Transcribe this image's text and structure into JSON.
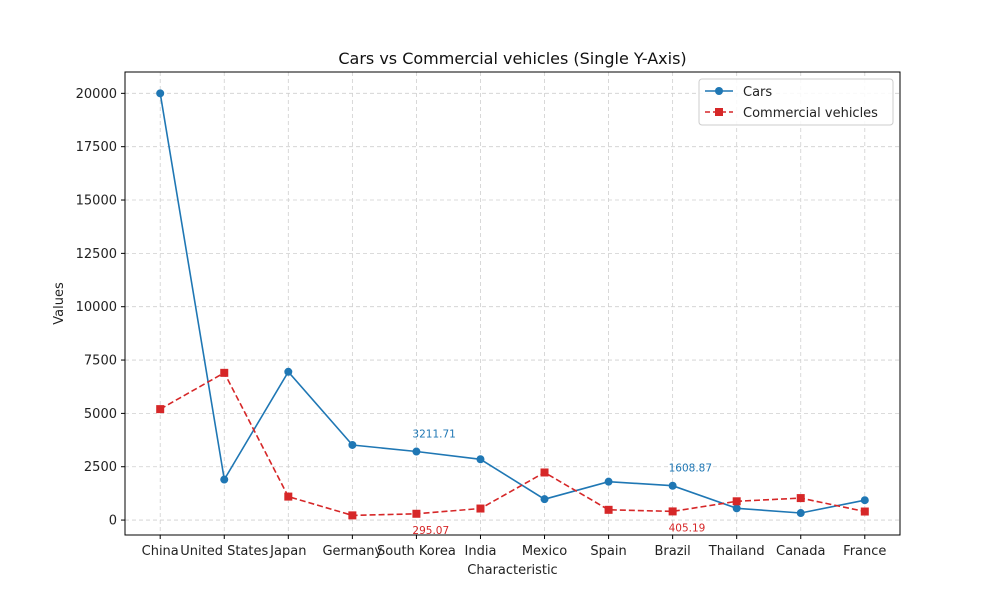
{
  "chart_data": {
    "type": "line",
    "title": "Cars vs Commercial vehicles (Single Y-Axis)",
    "xlabel": "Characteristic",
    "ylabel": "Values",
    "categories": [
      "China",
      "United States",
      "Japan",
      "Germany",
      "South Korea",
      "India",
      "Mexico",
      "Spain",
      "Brazil",
      "Thailand",
      "Canada",
      "France"
    ],
    "ylim": [
      -700,
      21000
    ],
    "yticks": [
      0,
      2500,
      5000,
      7500,
      10000,
      12500,
      15000,
      17500,
      20000
    ],
    "grid": true,
    "legend_position": "top-right",
    "series": [
      {
        "name": "Cars",
        "color": "#1f77b4",
        "line_style": "solid",
        "marker": "circle",
        "values": [
          20000,
          1900,
          6950,
          3520,
          3211.71,
          2850,
          980,
          1800,
          1608.87,
          550,
          330,
          930
        ]
      },
      {
        "name": "Commercial vehicles",
        "color": "#d62728",
        "line_style": "dashed",
        "marker": "square",
        "values": [
          5200,
          6900,
          1100,
          220,
          295.07,
          540,
          2230,
          480,
          405.19,
          880,
          1030,
          400
        ]
      }
    ],
    "annotations": [
      {
        "series": 0,
        "index": 4,
        "text": "3211.71",
        "position": "above"
      },
      {
        "series": 0,
        "index": 8,
        "text": "1608.87",
        "position": "above"
      },
      {
        "series": 1,
        "index": 4,
        "text": "295.07",
        "position": "below"
      },
      {
        "series": 1,
        "index": 8,
        "text": "405.19",
        "position": "below"
      }
    ]
  }
}
